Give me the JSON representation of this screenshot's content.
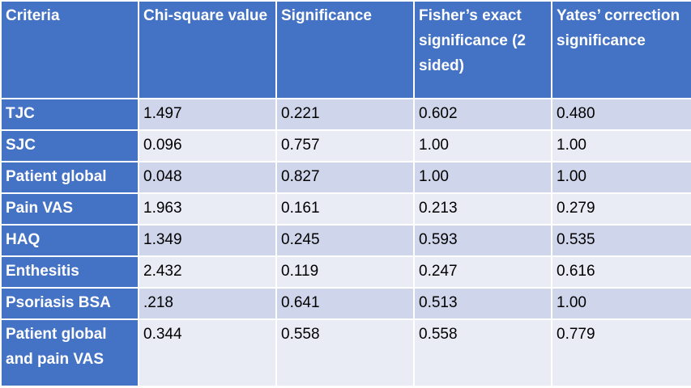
{
  "table": {
    "headers": [
      "Criteria",
      "Chi-square value",
      "Significance",
      "Fisher’s exact significance (2 sided)",
      "Yates’ correction significance"
    ],
    "rows": [
      {
        "criteria": "TJC",
        "chi_square": "1.497",
        "significance": "0.221",
        "fisher": "0.602",
        "yates": "0.480"
      },
      {
        "criteria": "SJC",
        "chi_square": "0.096",
        "significance": "0.757",
        "fisher": "1.00",
        "yates": "1.00"
      },
      {
        "criteria": "Patient global",
        "chi_square": "0.048",
        "significance": "0.827",
        "fisher": "1.00",
        "yates": "1.00"
      },
      {
        "criteria": "Pain VAS",
        "chi_square": "1.963",
        "significance": "0.161",
        "fisher": "0.213",
        "yates": "0.279"
      },
      {
        "criteria": "HAQ",
        "chi_square": "1.349",
        "significance": "0.245",
        "fisher": "0.593",
        "yates": "0.535"
      },
      {
        "criteria": "Enthesitis",
        "chi_square": "2.432",
        "significance": "0.119",
        "fisher": "0.247",
        "yates": "0.616"
      },
      {
        "criteria": "Psoriasis BSA",
        "chi_square": ".218",
        "significance": "0.641",
        "fisher": "0.513",
        "yates": "1.00"
      },
      {
        "criteria": "Patient global and pain VAS",
        "chi_square": "0.344",
        "significance": "0.558",
        "fisher": "0.558",
        "yates": "0.779"
      }
    ]
  },
  "colors": {
    "header_bg": "#4472c4",
    "header_text": "#ffffff",
    "row_band_dark": "#cfd5ea",
    "row_band_light": "#e9ebf5",
    "cell_text": "#000000"
  }
}
